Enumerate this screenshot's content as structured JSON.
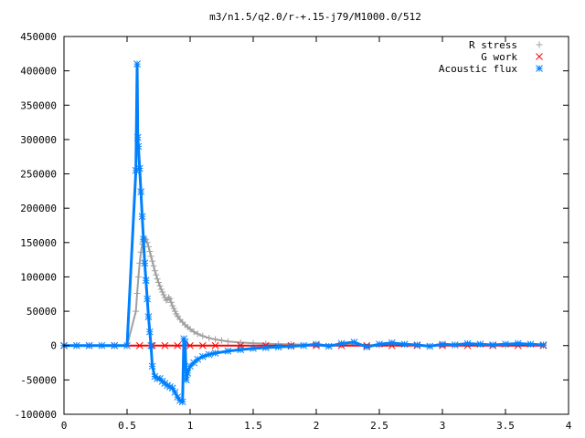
{
  "chart_data": {
    "type": "scatter",
    "title": "m3/n1.5/q2.0/r-+.15-j79/M1000.0/512",
    "xlim": [
      0,
      4
    ],
    "ylim": [
      -100000,
      450000
    ],
    "xticks": [
      0,
      0.5,
      1,
      1.5,
      2,
      2.5,
      3,
      3.5,
      4
    ],
    "xtick_labels": [
      "0",
      "0.5",
      "1",
      "1.5",
      "2",
      "2.5",
      "3",
      "3.5",
      "4"
    ],
    "yticks": [
      -100000,
      -50000,
      0,
      50000,
      100000,
      150000,
      200000,
      250000,
      300000,
      350000,
      400000,
      450000
    ],
    "ytick_labels": [
      "-100000",
      "-50000",
      "0",
      "50000",
      "100000",
      "150000",
      "200000",
      "250000",
      "300000",
      "350000",
      "400000",
      "450000"
    ],
    "legend_position": "top-right",
    "grid": false,
    "series": [
      {
        "name": "R stress",
        "marker": "plus",
        "color": "#a0a0a0",
        "x": [
          0.0,
          0.1,
          0.2,
          0.3,
          0.4,
          0.5,
          0.57,
          0.58,
          0.59,
          0.6,
          0.61,
          0.62,
          0.63,
          0.64,
          0.65,
          0.66,
          0.67,
          0.68,
          0.69,
          0.7,
          0.71,
          0.72,
          0.73,
          0.74,
          0.75,
          0.76,
          0.77,
          0.78,
          0.79,
          0.8,
          0.81,
          0.82,
          0.83,
          0.84,
          0.85,
          0.86,
          0.87,
          0.88,
          0.89,
          0.9,
          0.92,
          0.94,
          0.96,
          0.98,
          1.0,
          1.03,
          1.06,
          1.1,
          1.15,
          1.2,
          1.25,
          1.3,
          1.4,
          1.5,
          1.6,
          1.7,
          1.8,
          2.0,
          2.2,
          2.5,
          3.0,
          3.5,
          3.8
        ],
        "y": [
          0,
          0,
          0,
          0,
          0,
          0,
          50000,
          76000,
          100000,
          120000,
          136000,
          148000,
          154000,
          156000,
          154000,
          150000,
          144000,
          137000,
          130000,
          123000,
          116000,
          109000,
          103000,
          97000,
          92000,
          87000,
          82000,
          78000,
          74000,
          70000,
          66000,
          67000,
          70000,
          68000,
          63000,
          58000,
          54000,
          50000,
          46000,
          43000,
          38000,
          34000,
          30000,
          27000,
          24000,
          20000,
          17000,
          14000,
          11000,
          9000,
          7500,
          6000,
          4500,
          3500,
          2800,
          2200,
          1800,
          1200,
          800,
          500,
          300,
          200,
          150
        ]
      },
      {
        "name": "G work",
        "marker": "cross",
        "color": "#ff0000",
        "x": [
          0.0,
          0.2,
          0.4,
          0.6,
          0.7,
          0.8,
          0.9,
          1.0,
          1.1,
          1.2,
          1.4,
          1.6,
          1.8,
          2.0,
          2.2,
          2.4,
          2.6,
          2.8,
          3.0,
          3.2,
          3.4,
          3.6,
          3.8
        ],
        "y": [
          0,
          0,
          0,
          0,
          0,
          0,
          0,
          0,
          0,
          0,
          0,
          0,
          0,
          0,
          0,
          0,
          0,
          0,
          0,
          0,
          0,
          0,
          0
        ]
      },
      {
        "name": "Acoustic flux",
        "marker": "star",
        "color": "#0080ff",
        "x": [
          0.0,
          0.1,
          0.2,
          0.3,
          0.4,
          0.5,
          0.57,
          0.58,
          0.585,
          0.59,
          0.6,
          0.61,
          0.62,
          0.63,
          0.64,
          0.65,
          0.66,
          0.67,
          0.68,
          0.69,
          0.7,
          0.72,
          0.74,
          0.76,
          0.78,
          0.8,
          0.82,
          0.84,
          0.86,
          0.88,
          0.9,
          0.92,
          0.94,
          0.95,
          0.96,
          0.97,
          0.98,
          1.0,
          1.03,
          1.06,
          1.1,
          1.15,
          1.2,
          1.3,
          1.4,
          1.5,
          1.6,
          1.7,
          1.8,
          1.9,
          2.0,
          2.1,
          2.2,
          2.3,
          2.4,
          2.5,
          2.6,
          2.7,
          2.8,
          2.9,
          3.0,
          3.1,
          3.2,
          3.3,
          3.4,
          3.5,
          3.6,
          3.7,
          3.8
        ],
        "y": [
          0,
          0,
          0,
          0,
          0,
          0,
          255000,
          410000,
          303000,
          290000,
          258000,
          224000,
          188000,
          155000,
          120000,
          95000,
          68000,
          42000,
          20000,
          0,
          -30000,
          -45000,
          -48000,
          -48000,
          -52000,
          -55000,
          -58000,
          -60000,
          -62000,
          -68000,
          -75000,
          -80000,
          -82000,
          10000,
          5000,
          -50000,
          -40000,
          -30000,
          -25000,
          -20000,
          -16000,
          -13000,
          -11000,
          -8000,
          -6000,
          -4000,
          -3000,
          -2000,
          -1000,
          0,
          2000,
          -1000,
          3000,
          5000,
          -2000,
          2000,
          4000,
          2000,
          1000,
          -1000,
          2000,
          1000,
          3000,
          2000,
          1000,
          2000,
          3000,
          2000,
          1000
        ]
      }
    ]
  }
}
